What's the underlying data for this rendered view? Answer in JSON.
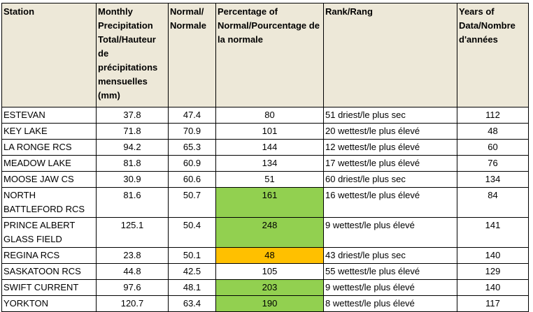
{
  "columns": [
    "Station",
    "Monthly Precipitation Total/Hauteur de précipitations mensuelles (mm)",
    "Normal/ Normale",
    "Percentage of Normal/Pourcentage de la normale",
    "Rank/Rang",
    "Years of Data/Nombre d'années"
  ],
  "rows": [
    {
      "station": "ESTEVAN",
      "precip": "37.8",
      "normal": "47.4",
      "pct": "80",
      "rank": "51 driest/le plus sec",
      "years": "112",
      "highlight": ""
    },
    {
      "station": "KEY LAKE",
      "precip": "71.8",
      "normal": "70.9",
      "pct": "101",
      "rank": "20 wettest/le plus élevé",
      "years": "48",
      "highlight": ""
    },
    {
      "station": "LA RONGE RCS",
      "precip": "94.2",
      "normal": "65.3",
      "pct": "144",
      "rank": "12 wettest/le plus élevé",
      "years": "60",
      "highlight": ""
    },
    {
      "station": "MEADOW LAKE",
      "precip": "81.8",
      "normal": "60.9",
      "pct": "134",
      "rank": "17 wettest/le plus élevé",
      "years": "76",
      "highlight": ""
    },
    {
      "station": "MOOSE JAW CS",
      "precip": "30.9",
      "normal": "60.6",
      "pct": "51",
      "rank": "60 driest/le plus sec",
      "years": "134",
      "highlight": ""
    },
    {
      "station": "NORTH BATTLEFORD RCS",
      "precip": "81.6",
      "normal": "50.7",
      "pct": "161",
      "rank": "16 wettest/le plus élevé",
      "years": "84",
      "highlight": "#92d050"
    },
    {
      "station": "PRINCE ALBERT GLASS FIELD",
      "precip": "125.1",
      "normal": "50.4",
      "pct": "248",
      "rank": "9 wettest/le plus élevé",
      "years": "141",
      "highlight": "#92d050"
    },
    {
      "station": "REGINA RCS",
      "precip": "23.8",
      "normal": "50.1",
      "pct": "48",
      "rank": "43 driest/le plus sec",
      "years": "140",
      "highlight": "#ffc000"
    },
    {
      "station": "SASKATOON RCS",
      "precip": "44.8",
      "normal": "42.5",
      "pct": "105",
      "rank": "55 wettest/le plus élevé",
      "years": "129",
      "highlight": ""
    },
    {
      "station": "SWIFT CURRENT",
      "precip": "97.6",
      "normal": "48.1",
      "pct": "203",
      "rank": "9 wettest/le plus élevé",
      "years": "140",
      "highlight": "#92d050"
    },
    {
      "station": "YORKTON",
      "precip": "120.7",
      "normal": "63.4",
      "pct": "190",
      "rank": "8 wettest/le plus élevé",
      "years": "117",
      "highlight": "#92d050"
    }
  ],
  "colors": {
    "header_bg": "#ede8d8",
    "above_normal": "#92d050",
    "below_normal": "#ffc000"
  }
}
